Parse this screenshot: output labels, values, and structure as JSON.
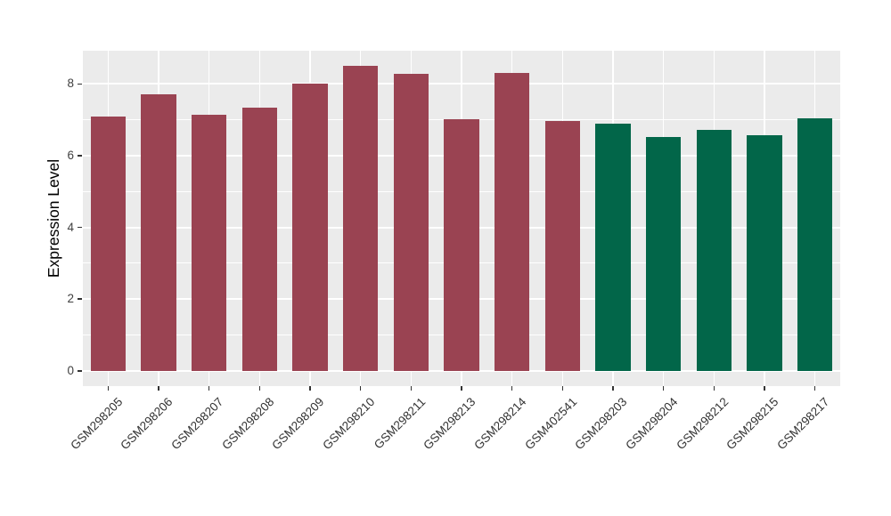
{
  "chart_data": {
    "type": "bar",
    "title": "",
    "xlabel": "",
    "ylabel": "Expression Level",
    "categories": [
      "GSM298205",
      "GSM298206",
      "GSM298207",
      "GSM298208",
      "GSM298209",
      "GSM298210",
      "GSM298211",
      "GSM298213",
      "GSM298214",
      "GSM402541",
      "GSM298203",
      "GSM298204",
      "GSM298212",
      "GSM298215",
      "GSM298217"
    ],
    "values": [
      7.09,
      7.72,
      7.15,
      7.33,
      8.0,
      8.5,
      8.29,
      7.01,
      8.31,
      6.97,
      6.88,
      6.53,
      6.72,
      6.58,
      7.03
    ],
    "bar_colors": [
      "#9A4352",
      "#9A4352",
      "#9A4352",
      "#9A4352",
      "#9A4352",
      "#9A4352",
      "#9A4352",
      "#9A4352",
      "#9A4352",
      "#9A4352",
      "#026649",
      "#026649",
      "#026649",
      "#026649",
      "#026649"
    ],
    "group_colors": {
      "maroon": "#9A4352",
      "green": "#026649"
    },
    "yticks": [
      0,
      2,
      4,
      6,
      8
    ],
    "minor_yticks": [
      1,
      3,
      5,
      7
    ],
    "ylim": [
      -0.425,
      8.925
    ],
    "grid": "on",
    "legend": "none",
    "panel_background": "#EBEBEB",
    "gridline_color": "#FFFFFF",
    "axis_text_color": "#404040",
    "bar_width_fraction": 0.7
  }
}
